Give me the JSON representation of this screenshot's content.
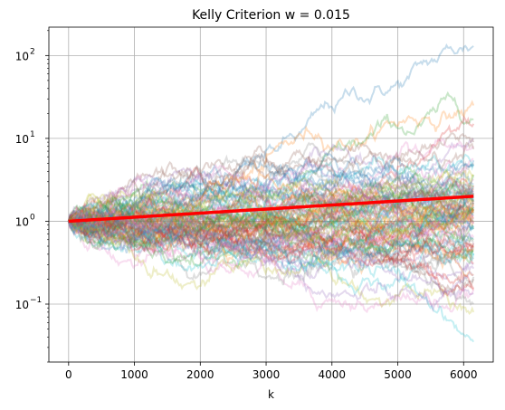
{
  "chart_data": {
    "type": "line",
    "title": "Kelly Criterion w = 0.015",
    "xlabel": "k",
    "ylabel": "",
    "xlim": [
      -300,
      6450
    ],
    "ylim": [
      0.02,
      220
    ],
    "y_scale": "log",
    "grid": true,
    "x_ticks": [
      0,
      1000,
      2000,
      3000,
      4000,
      5000,
      6000
    ],
    "x_tick_labels": [
      "0",
      "1000",
      "2000",
      "3000",
      "4000",
      "5000",
      "6000"
    ],
    "y_ticks": [
      0.1,
      1,
      10,
      100
    ],
    "y_tick_labels": [
      "10",
      "10",
      "10",
      "10"
    ],
    "y_tick_exponents": [
      "−1",
      "0",
      "1",
      "2"
    ],
    "highlight_series": {
      "name": "",
      "color": "#ff0000",
      "x": [
        0,
        6150
      ],
      "y": [
        1.0,
        2.0
      ]
    },
    "simulated_paths": {
      "count": 100,
      "x_end": 6150,
      "opacity": 0.25,
      "colors": [
        "#1f77b4",
        "#ff7f0e",
        "#2ca02c",
        "#d62728",
        "#9467bd",
        "#8c564b",
        "#e377c2",
        "#7f7f7f",
        "#bcbd22",
        "#17becf"
      ],
      "sample_endpoints": [
        130,
        25,
        17,
        15,
        10,
        9,
        8,
        5,
        3.5,
        2,
        1.5,
        1,
        0.8,
        0.5,
        0.3,
        0.2,
        0.15,
        0.1,
        0.08,
        0.035
      ]
    }
  }
}
